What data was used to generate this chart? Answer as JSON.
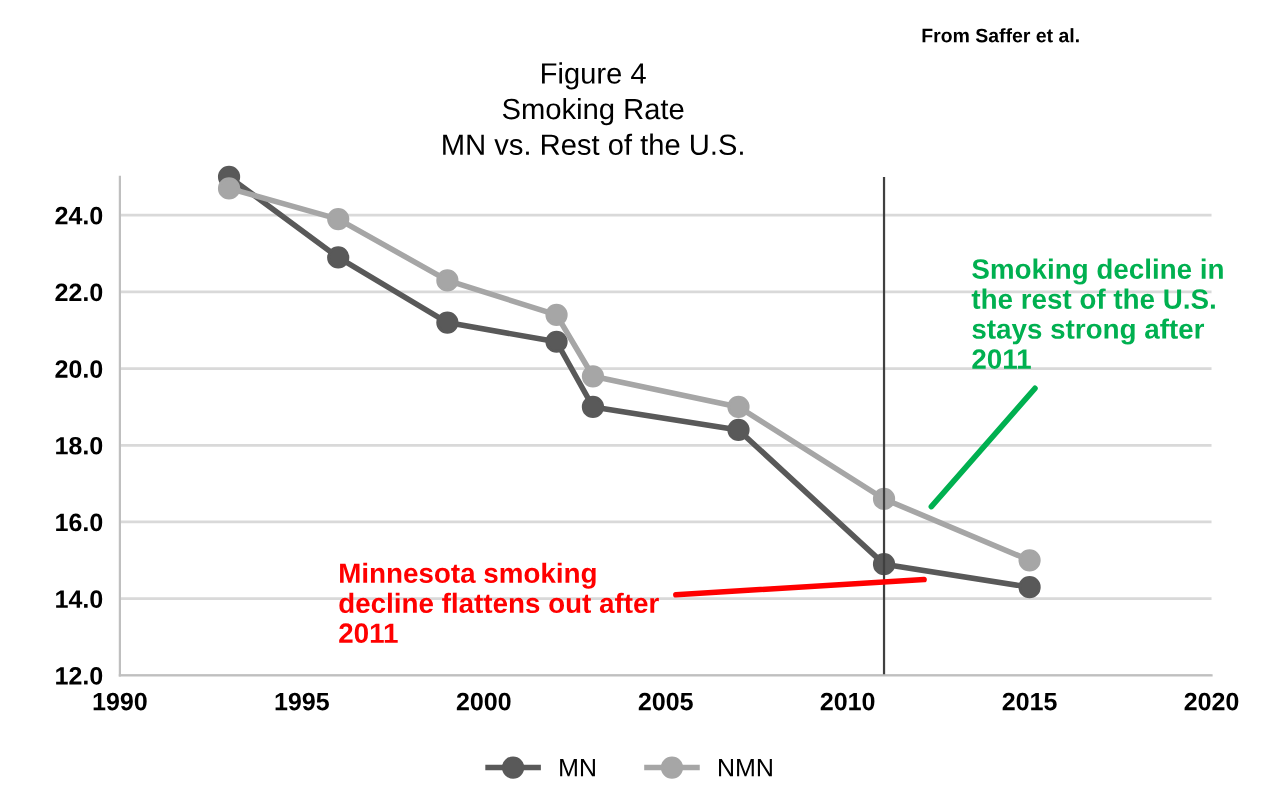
{
  "chart_data": {
    "type": "line",
    "title": "Figure 4\nSmoking Rate\nMN vs. Rest of the U.S.",
    "x": [
      1993,
      1996,
      1999,
      2002,
      2003,
      2007,
      2011,
      2015
    ],
    "series": [
      {
        "name": "MN",
        "color": "#595959",
        "values": [
          25.0,
          22.9,
          21.2,
          20.7,
          19.0,
          18.4,
          14.9,
          14.3
        ]
      },
      {
        "name": "NMN",
        "color": "#a6a6a6",
        "values": [
          24.7,
          23.9,
          22.3,
          21.4,
          19.8,
          19.0,
          16.6,
          15.0
        ]
      }
    ],
    "xlim": [
      1990,
      2020
    ],
    "xticks": [
      1990,
      1995,
      2000,
      2005,
      2010,
      2015,
      2020
    ],
    "ylim": [
      12,
      25
    ],
    "yticks": [
      {
        "value": 12,
        "label": "12.0"
      },
      {
        "value": 14,
        "label": "14.0"
      },
      {
        "value": 16,
        "label": "16.0"
      },
      {
        "value": 18,
        "label": "18.0"
      },
      {
        "value": 20,
        "label": "20.0"
      },
      {
        "value": 22,
        "label": "22.0"
      },
      {
        "value": 24,
        "label": "24.0"
      }
    ],
    "ref_lines": [
      {
        "axis": "x",
        "value": 2011,
        "color": "#404040"
      }
    ],
    "annotations": [
      {
        "text": "Minnesota smoking\ndecline flattens out after\n2011",
        "x": 2012.1,
        "y": 14.5
      },
      {
        "text": "Smoking decline in\nthe rest of the U.S.\nstays strong after\n2011",
        "x": 2012.3,
        "y": 16.4
      },
      "From Saffer et al."
    ],
    "grid": "y",
    "legend": "bottom",
    "marker": "circle",
    "line_style": "solid"
  }
}
